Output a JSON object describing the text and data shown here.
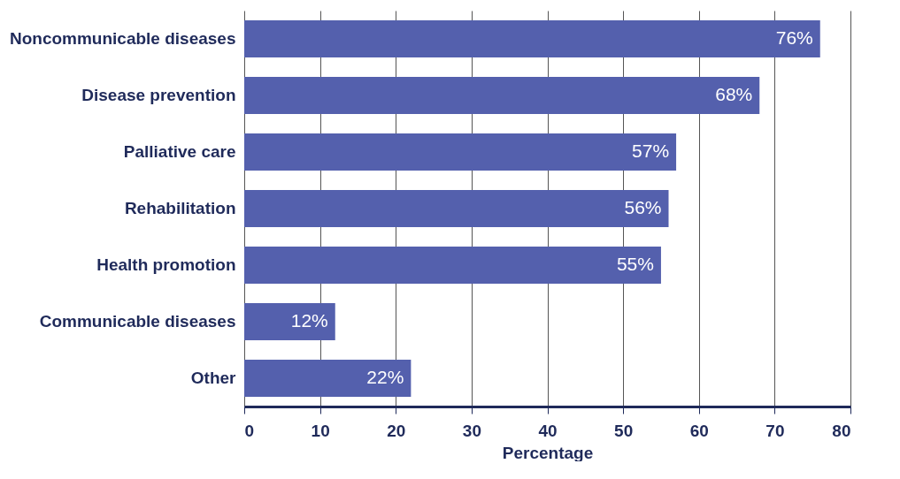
{
  "chart_data": {
    "type": "bar",
    "orientation": "horizontal",
    "xlabel": "Percentage",
    "categories": [
      "Noncommunicable diseases",
      "Disease prevention",
      "Palliative care",
      "Rehabilitation",
      "Health promotion",
      "Communicable diseases",
      "Other"
    ],
    "values": [
      76,
      68,
      57,
      56,
      55,
      12,
      22
    ],
    "value_labels": [
      "76%",
      "68%",
      "57%",
      "56%",
      "55%",
      "12%",
      "22%"
    ],
    "color": "#5460ad",
    "xlim": [
      0,
      80
    ],
    "xticks": [
      0,
      10,
      20,
      30,
      40,
      50,
      60,
      70,
      80
    ],
    "grid": "x"
  }
}
